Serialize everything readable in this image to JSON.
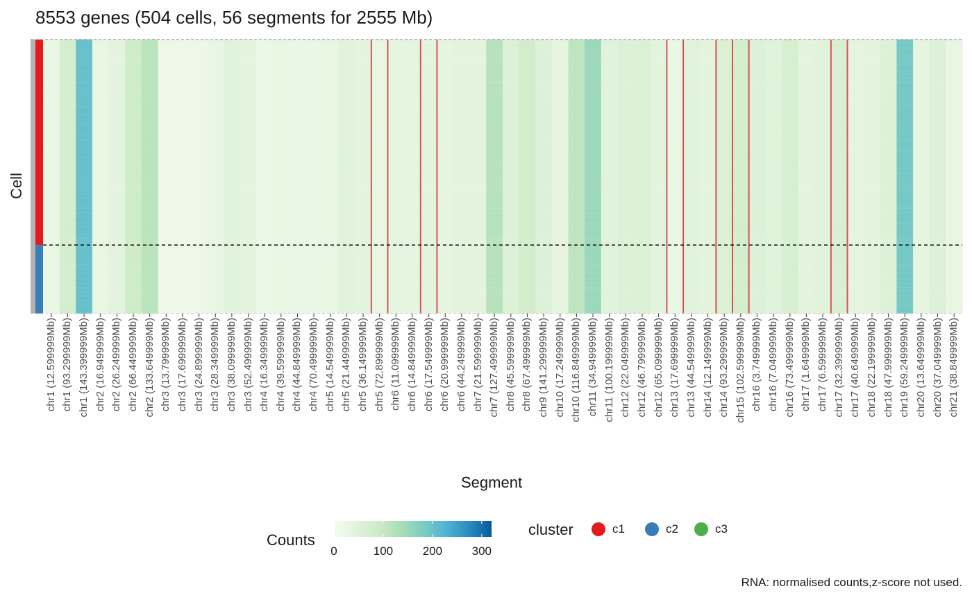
{
  "chart_data": {
    "type": "heatmap",
    "title": "8553 genes (504 cells, 56 segments for 2555 Mb)",
    "xlabel": "Segment",
    "ylabel": "Cell",
    "caption": "RNA: normalised counts,z-score not used.",
    "segments": [
      "chr1 (12.599999Mb)",
      "chr1 (93.299999Mb)",
      "chr1 (143.399999Mb)",
      "chr2 (16.949999Mb)",
      "chr2 (26.249999Mb)",
      "chr2 (66.449999Mb)",
      "chr2 (133.649999Mb)",
      "chr3 (13.799999Mb)",
      "chr3 (17.699999Mb)",
      "chr3 (24.899999Mb)",
      "chr3 (28.349999Mb)",
      "chr3 (38.099999Mb)",
      "chr3 (52.499999Mb)",
      "chr4 (16.349999Mb)",
      "chr4 (39.599999Mb)",
      "chr4 (44.849999Mb)",
      "chr4 (70.499999Mb)",
      "chr5 (14.549999Mb)",
      "chr5 (21.449999Mb)",
      "chr5 (36.149999Mb)",
      "chr5 (72.899999Mb)",
      "chr6 (11.099999Mb)",
      "chr6 (14.849999Mb)",
      "chr6 (17.549999Mb)",
      "chr6 (20.999999Mb)",
      "chr6 (44.249999Mb)",
      "chr7 (21.599999Mb)",
      "chr7 (127.499999Mb)",
      "chr8 (45.599999Mb)",
      "chr8 (67.499999Mb)",
      "chr9 (141.299999Mb)",
      "chr10 (17.249999Mb)",
      "chr10 (116.849999Mb)",
      "chr11 (34.949999Mb)",
      "chr11 (100.199999Mb)",
      "chr12 (22.049999Mb)",
      "chr12 (46.799999Mb)",
      "chr12 (65.099999Mb)",
      "chr13 (17.699999Mb)",
      "chr13 (44.549999Mb)",
      "chr14 (12.149999Mb)",
      "chr14 (93.299999Mb)",
      "chr15 (102.599999Mb)",
      "chr16 (3.749999Mb)",
      "chr16 (7.049999Mb)",
      "chr16 (73.499999Mb)",
      "chr17 (1.649999Mb)",
      "chr17 (6.599999Mb)",
      "chr17 (32.399999Mb)",
      "chr17 (40.649999Mb)",
      "chr18 (22.199999Mb)",
      "chr18 (47.999999Mb)",
      "chr19 (59.249999Mb)",
      "chr20 (13.649999Mb)",
      "chr20 (37.049999Mb)",
      "chr21 (38.849999Mb)"
    ],
    "mean_counts": [
      25,
      75,
      205,
      30,
      40,
      85,
      115,
      20,
      18,
      20,
      28,
      45,
      40,
      22,
      30,
      25,
      25,
      30,
      45,
      40,
      30,
      35,
      35,
      40,
      35,
      40,
      40,
      120,
      55,
      80,
      55,
      35,
      110,
      150,
      45,
      55,
      60,
      40,
      25,
      45,
      40,
      60,
      75,
      55,
      45,
      70,
      40,
      45,
      65,
      35,
      40,
      55,
      190,
      35,
      55,
      30
    ],
    "cells": 504,
    "cluster_boundary_fraction": 0.75,
    "cell_clusters": [
      {
        "cluster": "c1",
        "fraction": 0.75
      },
      {
        "cluster": "c2",
        "fraction": 0.25
      }
    ],
    "chromosome_boundaries_after_segment": [
      20,
      21,
      23,
      24,
      38,
      39,
      41,
      42,
      43,
      48,
      49
    ],
    "color_scale": {
      "title": "Counts",
      "min": 0,
      "max": 320,
      "ticks": [
        0,
        100,
        200,
        300
      ],
      "colors": [
        "#f7fcf0",
        "#e0f3db",
        "#ccebc5",
        "#a8ddb5",
        "#7bccc4",
        "#4eb3d3",
        "#2b8cbe",
        "#08589e"
      ]
    },
    "legend": {
      "title": "cluster",
      "items": [
        {
          "label": "c1",
          "color": "#e41a1c"
        },
        {
          "label": "c2",
          "color": "#377eb8"
        },
        {
          "label": "c3",
          "color": "#4daf4a"
        }
      ]
    }
  }
}
